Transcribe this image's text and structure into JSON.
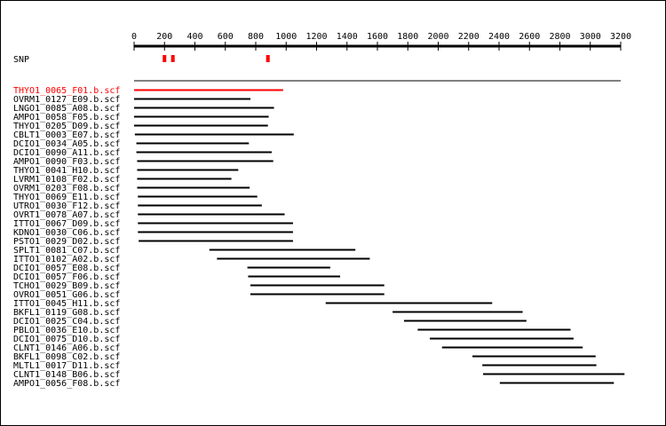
{
  "axis": {
    "min": 0,
    "max": 3200,
    "ticks": [
      0,
      200,
      400,
      600,
      800,
      1000,
      1200,
      1400,
      1600,
      1800,
      2000,
      2200,
      2400,
      2600,
      2800,
      3000,
      3200
    ]
  },
  "snp": {
    "label": "SNP",
    "color": "#ff0000",
    "positions": [
      200,
      255,
      880
    ]
  },
  "reference": {
    "start": 0,
    "end": 3200
  },
  "reads": [
    {
      "name": "THYO1_0065_F01.b.scf",
      "start": 0,
      "end": 980,
      "highlight": true
    },
    {
      "name": "OVRM1_0127_E09.b.scf",
      "start": 0,
      "end": 765
    },
    {
      "name": "LNGO1_0085_A08.b.scf",
      "start": 0,
      "end": 920
    },
    {
      "name": "AMPO1_0058_F05.b.scf",
      "start": 0,
      "end": 885
    },
    {
      "name": "THYO1_0205_D09.b.scf",
      "start": 0,
      "end": 880
    },
    {
      "name": "CBLT1_0003_E07.b.scf",
      "start": 5,
      "end": 1050
    },
    {
      "name": "DCIO1_0034_A05.b.scf",
      "start": 15,
      "end": 755
    },
    {
      "name": "DCIO1_0090_A11.b.scf",
      "start": 15,
      "end": 905
    },
    {
      "name": "AMPO1_0090_F03.b.scf",
      "start": 20,
      "end": 915
    },
    {
      "name": "THYO1_0041_H10.b.scf",
      "start": 20,
      "end": 685
    },
    {
      "name": "LVRM1_0108_F02.b.scf",
      "start": 20,
      "end": 640
    },
    {
      "name": "OVRM1_0203_F08.b.scf",
      "start": 20,
      "end": 760
    },
    {
      "name": "THYO1_0069_E11.b.scf",
      "start": 25,
      "end": 810
    },
    {
      "name": "UTRO1_0030_F12.b.scf",
      "start": 25,
      "end": 840
    },
    {
      "name": "OVRT1_0078_A07.b.scf",
      "start": 25,
      "end": 990
    },
    {
      "name": "ITTO1_0067_D09.b.scf",
      "start": 25,
      "end": 1045
    },
    {
      "name": "KDNO1_0030_C06.b.scf",
      "start": 25,
      "end": 1045
    },
    {
      "name": "PSTO1_0029_D02.b.scf",
      "start": 30,
      "end": 1045
    },
    {
      "name": "SPLT1_0081_C07.b.scf",
      "start": 495,
      "end": 1455
    },
    {
      "name": "ITTO1_0102_A02.b.scf",
      "start": 545,
      "end": 1550
    },
    {
      "name": "DCIO1_0057_E08.b.scf",
      "start": 745,
      "end": 1290
    },
    {
      "name": "DCIO1_0057_F06.b.scf",
      "start": 750,
      "end": 1355
    },
    {
      "name": "TCHO1_0029_B09.b.scf",
      "start": 765,
      "end": 1645
    },
    {
      "name": "OVRO1_0051_G06.b.scf",
      "start": 765,
      "end": 1645
    },
    {
      "name": "ITTO1_0045_H11.b.scf",
      "start": 1260,
      "end": 2355
    },
    {
      "name": "BKFL1_0119_G08.b.scf",
      "start": 1700,
      "end": 2555
    },
    {
      "name": "DCIO1_0025_C04.b.scf",
      "start": 1775,
      "end": 2580
    },
    {
      "name": "PBLO1_0036_E10.b.scf",
      "start": 1865,
      "end": 2870
    },
    {
      "name": "DCIO1_0075_D10.b.scf",
      "start": 1945,
      "end": 2890
    },
    {
      "name": "CLNT1_0146_A06.b.scf",
      "start": 2025,
      "end": 2950
    },
    {
      "name": "BKFL1_0098_C02.b.scf",
      "start": 2225,
      "end": 3035
    },
    {
      "name": "MLTL1_0017_D11.b.scf",
      "start": 2290,
      "end": 3040
    },
    {
      "name": "CLNT1_0148_B06.b.scf",
      "start": 2295,
      "end": 3225
    },
    {
      "name": "AMPO1_0056_F08.b.scf",
      "start": 2405,
      "end": 3155
    }
  ],
  "colors": {
    "line": "#000000",
    "highlight": "#ff0000",
    "background": "#ffffff"
  }
}
